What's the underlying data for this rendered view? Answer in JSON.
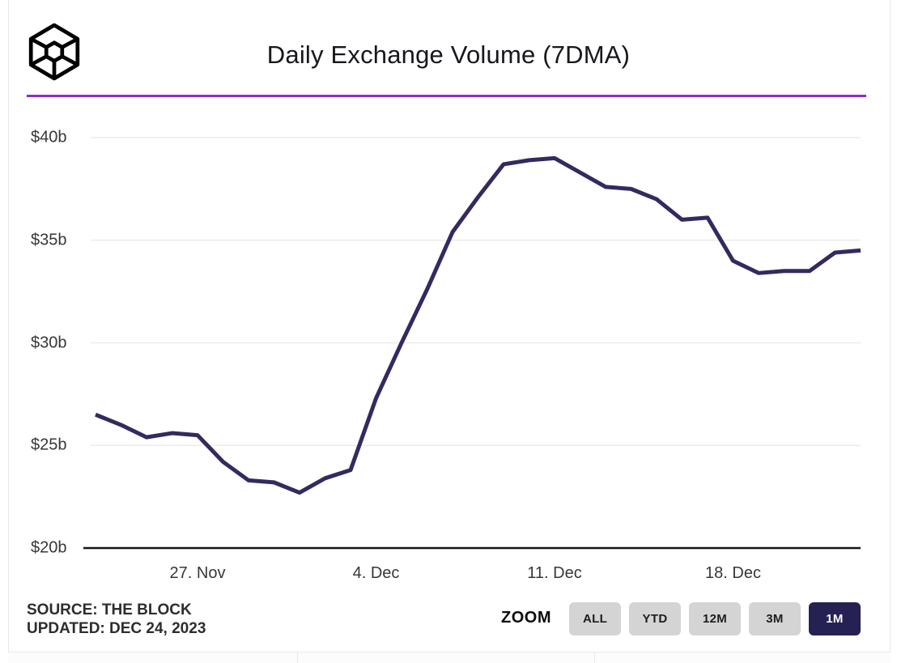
{
  "header": {
    "title": "Daily Exchange Volume (7DMA)",
    "logo": "the-block-logo"
  },
  "chart_data": {
    "type": "line",
    "title": "Daily Exchange Volume (7DMA)",
    "unit": "billions USD",
    "ylim": [
      20,
      40
    ],
    "grid": "horizontal",
    "y_tick_values": [
      20,
      25,
      30,
      35,
      40
    ],
    "y_tick_labels": [
      "$20b",
      "$25b",
      "$30b",
      "$35b",
      "$40b"
    ],
    "x_tick_labels": [
      "27. Nov",
      "4. Dec",
      "11. Dec",
      "18. Dec"
    ],
    "x_tick_indices": [
      4,
      11,
      18,
      25
    ],
    "series": [
      {
        "name": "Daily Exchange Volume (7DMA)",
        "x": [
          "Nov 23",
          "Nov 24",
          "Nov 25",
          "Nov 26",
          "Nov 27",
          "Nov 28",
          "Nov 29",
          "Nov 30",
          "Dec 1",
          "Dec 2",
          "Dec 3",
          "Dec 4",
          "Dec 5",
          "Dec 6",
          "Dec 7",
          "Dec 8",
          "Dec 9",
          "Dec 10",
          "Dec 11",
          "Dec 12",
          "Dec 13",
          "Dec 14",
          "Dec 15",
          "Dec 16",
          "Dec 17",
          "Dec 18",
          "Dec 19",
          "Dec 20",
          "Dec 21",
          "Dec 22",
          "Dec 23"
        ],
        "values": [
          26.5,
          26.0,
          25.4,
          25.6,
          25.5,
          24.2,
          23.3,
          23.2,
          22.7,
          23.4,
          23.8,
          27.3,
          30.0,
          32.6,
          35.4,
          37.1,
          38.7,
          38.9,
          39.0,
          38.3,
          37.6,
          37.5,
          37.0,
          36.0,
          36.1,
          34.0,
          33.4,
          33.5,
          33.5,
          34.4,
          34.5
        ]
      }
    ]
  },
  "footer": {
    "source": "SOURCE: THE BLOCK",
    "updated": "UPDATED: DEC 24, 2023",
    "zoom_label": "ZOOM",
    "zoom_buttons": [
      {
        "label": "ALL",
        "active": false
      },
      {
        "label": "YTD",
        "active": false
      },
      {
        "label": "12M",
        "active": false
      },
      {
        "label": "3M",
        "active": false
      },
      {
        "label": "1M",
        "active": true
      }
    ]
  },
  "colors": {
    "line": "#322b5f",
    "accent_divider": "#8c2bd4",
    "gridline": "#ececec",
    "axis": "#161616",
    "button_bg": "#d4d4d4",
    "button_active_bg": "#262153",
    "button_active_text": "#ffffff"
  }
}
